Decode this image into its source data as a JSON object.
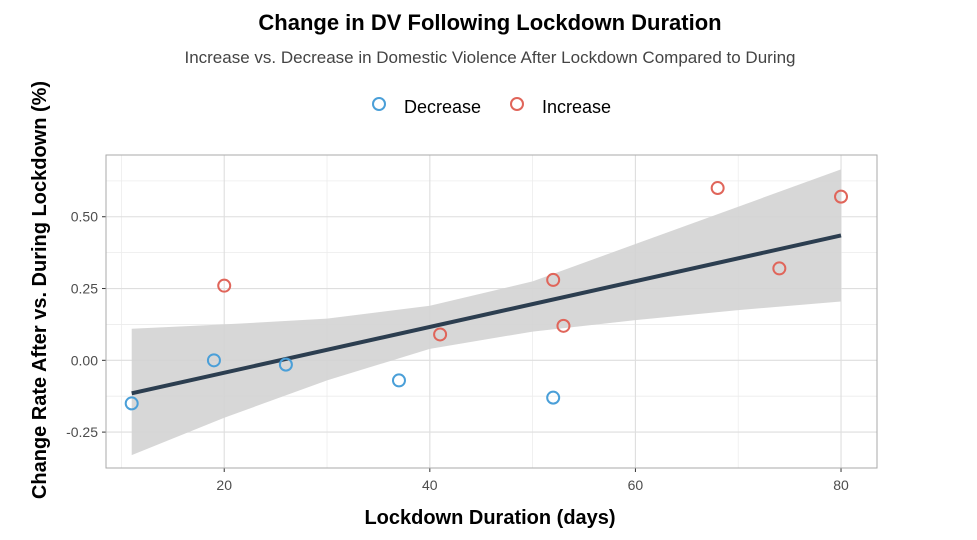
{
  "chart_data": {
    "type": "scatter",
    "title": "Change in DV Following Lockdown Duration",
    "subtitle": "Increase vs. Decrease in Domestic Violence After Lockdown Compared to During",
    "xlabel": "Lockdown Duration (days)",
    "ylabel": "Change Rate After vs. During Lockdown (%)",
    "xlim": [
      8.5,
      83.5
    ],
    "ylim": [
      -0.375,
      0.715
    ],
    "x_ticks": [
      20,
      40,
      60,
      80
    ],
    "y_ticks": [
      -0.25,
      0.0,
      0.25,
      0.5
    ],
    "x_tick_labels": [
      "20",
      "40",
      "60",
      "80"
    ],
    "y_tick_labels": [
      "-0.25",
      "0.00",
      "0.25",
      "0.50"
    ],
    "grid": true,
    "legend_position": "top",
    "series": [
      {
        "name": "Decrease",
        "color": "#4a9fd8",
        "x": [
          11,
          19,
          26,
          37,
          52
        ],
        "y": [
          -0.15,
          0.0,
          -0.015,
          -0.07,
          -0.13
        ]
      },
      {
        "name": "Increase",
        "color": "#e0655a",
        "x": [
          20,
          41,
          52,
          53,
          68,
          74,
          80
        ],
        "y": [
          0.26,
          0.09,
          0.28,
          0.12,
          0.6,
          0.32,
          0.57
        ]
      }
    ],
    "trend_line": {
      "color": "#2c3e50",
      "x": [
        11,
        80
      ],
      "y": [
        -0.115,
        0.435
      ]
    },
    "confidence_band": {
      "color": "#d3d3d3",
      "x": [
        11,
        20,
        30,
        40,
        50,
        60,
        70,
        80
      ],
      "lower": [
        -0.33,
        -0.2,
        -0.07,
        0.04,
        0.1,
        0.14,
        0.175,
        0.205
      ],
      "upper": [
        0.11,
        0.125,
        0.145,
        0.19,
        0.275,
        0.405,
        0.535,
        0.665
      ]
    }
  }
}
